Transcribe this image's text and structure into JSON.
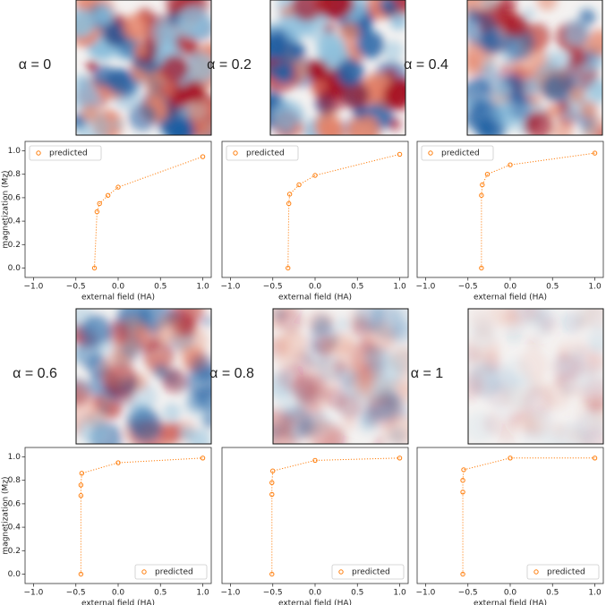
{
  "chart_data": [
    {
      "type": "line",
      "label": "α = 0",
      "x": [
        -0.28,
        -0.25,
        -0.22,
        -0.12,
        0,
        1
      ],
      "series": [
        {
          "name": "predicted",
          "color": "#ff7f0e",
          "values": [
            0,
            0.48,
            0.55,
            0.62,
            0.69,
            0.95
          ]
        }
      ],
      "xlim": [
        -1.1,
        1.1
      ],
      "ylim": [
        -0.08,
        1.08
      ],
      "xticks": [
        {
          "value": -1,
          "label": "−1.0"
        },
        {
          "value": -0.5,
          "label": "−0.5"
        },
        {
          "value": 0,
          "label": "0.0"
        },
        {
          "value": 0.5,
          "label": "0.5"
        },
        {
          "value": 1,
          "label": "1.0"
        }
      ],
      "yticks": [
        {
          "value": 0,
          "label": "0.0"
        },
        {
          "value": 0.2,
          "label": "0.2"
        },
        {
          "value": 0.4,
          "label": "0.4"
        },
        {
          "value": 0.6,
          "label": "0.6"
        },
        {
          "value": 0.8,
          "label": "0.8"
        },
        {
          "value": 1,
          "label": "1.0"
        }
      ],
      "xlabel": "external field (HA)",
      "ylabel": "magnetization (Mz)",
      "legend": "upper left"
    },
    {
      "type": "line",
      "label": "α = 0.2",
      "x": [
        -0.32,
        -0.31,
        -0.3,
        -0.19,
        0,
        1
      ],
      "series": [
        {
          "name": "predicted",
          "color": "#ff7f0e",
          "values": [
            0,
            0.55,
            0.63,
            0.71,
            0.79,
            0.97
          ]
        }
      ],
      "xlim": [
        -1.1,
        1.1
      ],
      "ylim": [
        -0.08,
        1.08
      ],
      "xticks": [
        {
          "value": -1,
          "label": "−1.0"
        },
        {
          "value": -0.5,
          "label": "−0.5"
        },
        {
          "value": 0,
          "label": "0.0"
        },
        {
          "value": 0.5,
          "label": "0.5"
        },
        {
          "value": 1,
          "label": "1.0"
        }
      ],
      "xlabel": "external field (HA)",
      "legend": "upper left"
    },
    {
      "type": "line",
      "label": "α = 0.4",
      "x": [
        -0.34,
        -0.34,
        -0.33,
        -0.27,
        0,
        1
      ],
      "series": [
        {
          "name": "predicted",
          "color": "#ff7f0e",
          "values": [
            0,
            0.62,
            0.71,
            0.8,
            0.88,
            0.98
          ]
        }
      ],
      "xlim": [
        -1.1,
        1.1
      ],
      "ylim": [
        -0.08,
        1.08
      ],
      "xticks": [
        {
          "value": -1,
          "label": "−1.0"
        },
        {
          "value": -0.5,
          "label": "−0.5"
        },
        {
          "value": 0,
          "label": "0.0"
        },
        {
          "value": 0.5,
          "label": "0.5"
        },
        {
          "value": 1,
          "label": "1.0"
        }
      ],
      "xlabel": "external field (HA)",
      "legend": "upper left"
    },
    {
      "type": "line",
      "label": "α = 0.6",
      "x": [
        -0.44,
        -0.44,
        -0.44,
        -0.43,
        0,
        1
      ],
      "series": [
        {
          "name": "predicted",
          "color": "#ff7f0e",
          "values": [
            0,
            0.67,
            0.76,
            0.86,
            0.95,
            0.99
          ]
        }
      ],
      "xlim": [
        -1.1,
        1.1
      ],
      "ylim": [
        -0.08,
        1.08
      ],
      "xticks": [
        {
          "value": -1,
          "label": "−1.0"
        },
        {
          "value": -0.5,
          "label": "−0.5"
        },
        {
          "value": 0,
          "label": "0.0"
        },
        {
          "value": 0.5,
          "label": "0.5"
        },
        {
          "value": 1,
          "label": "1.0"
        }
      ],
      "yticks": [
        {
          "value": 0,
          "label": "0.0"
        },
        {
          "value": 0.2,
          "label": "0.2"
        },
        {
          "value": 0.4,
          "label": "0.4"
        },
        {
          "value": 0.6,
          "label": "0.6"
        },
        {
          "value": 0.8,
          "label": "0.8"
        },
        {
          "value": 1,
          "label": "1.0"
        }
      ],
      "xlabel": "external field (HA)",
      "ylabel": "magnetization (Mz)",
      "legend": "lower right"
    },
    {
      "type": "line",
      "label": "α = 0.8",
      "x": [
        -0.51,
        -0.51,
        -0.51,
        -0.5,
        0,
        1
      ],
      "series": [
        {
          "name": "predicted",
          "color": "#ff7f0e",
          "values": [
            0,
            0.68,
            0.78,
            0.88,
            0.97,
            0.99
          ]
        }
      ],
      "xlim": [
        -1.1,
        1.1
      ],
      "ylim": [
        -0.08,
        1.08
      ],
      "xticks": [
        {
          "value": -1,
          "label": "−1.0"
        },
        {
          "value": -0.5,
          "label": "−0.5"
        },
        {
          "value": 0,
          "label": "0.0"
        },
        {
          "value": 0.5,
          "label": "0.5"
        },
        {
          "value": 1,
          "label": "1.0"
        }
      ],
      "xlabel": "external field (HA)",
      "legend": "lower right"
    },
    {
      "type": "line",
      "label": "α = 1",
      "x": [
        -0.56,
        -0.56,
        -0.56,
        -0.55,
        0,
        1
      ],
      "series": [
        {
          "name": "predicted",
          "color": "#ff7f0e",
          "values": [
            0,
            0.7,
            0.8,
            0.89,
            0.99,
            0.99
          ]
        }
      ],
      "xlim": [
        -1.1,
        1.1
      ],
      "ylim": [
        -0.08,
        1.08
      ],
      "xticks": [
        {
          "value": -1,
          "label": "−1.0"
        },
        {
          "value": -0.5,
          "label": "−0.5"
        },
        {
          "value": 0,
          "label": "0.0"
        },
        {
          "value": 0.5,
          "label": "0.5"
        },
        {
          "value": 1,
          "label": "1.0"
        }
      ],
      "xlabel": "external field (HA)",
      "legend": "lower right"
    }
  ]
}
